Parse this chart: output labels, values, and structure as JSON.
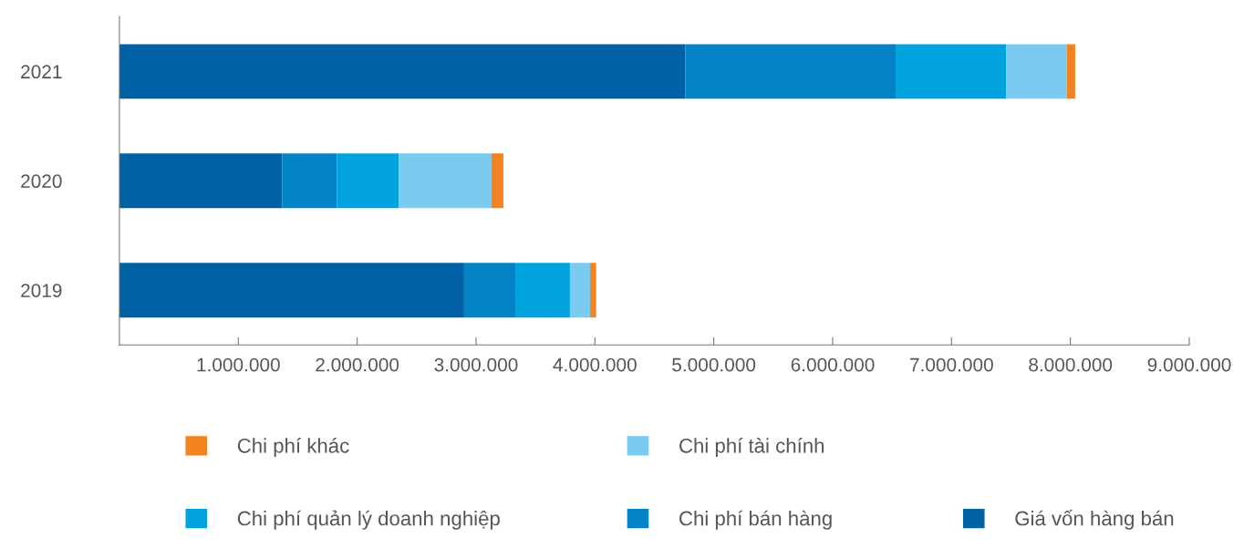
{
  "chart_data": {
    "type": "bar",
    "orientation": "horizontal",
    "stacked": true,
    "categories": [
      "2021",
      "2020",
      "2019"
    ],
    "series": [
      {
        "name": "Giá vốn hàng bán",
        "color": "#0062a5",
        "values": [
          4760000,
          1370000,
          2900000
        ]
      },
      {
        "name": "Chi phí bán hàng",
        "color": "#0383c5",
        "values": [
          1770000,
          460000,
          430000
        ]
      },
      {
        "name": "Chi phí quản lý doanh nghiệp",
        "color": "#00a3de",
        "values": [
          930000,
          520000,
          460000
        ]
      },
      {
        "name": "Chi phí tài chính",
        "color": "#7acbef",
        "values": [
          510000,
          780000,
          170000
        ]
      },
      {
        "name": "Chi phí khác",
        "color": "#f58220",
        "values": [
          70000,
          100000,
          50000
        ]
      }
    ],
    "xlim": [
      0,
      9000000
    ],
    "xticks": [
      {
        "value": 1000000,
        "label": "1.000.000"
      },
      {
        "value": 2000000,
        "label": "2.000.000"
      },
      {
        "value": 3000000,
        "label": "3.000.000"
      },
      {
        "value": 4000000,
        "label": "4.000.000"
      },
      {
        "value": 5000000,
        "label": "5.000.000"
      },
      {
        "value": 6000000,
        "label": "6.000.000"
      },
      {
        "value": 7000000,
        "label": "7.000.000"
      },
      {
        "value": 8000000,
        "label": "8.000.000"
      },
      {
        "value": 9000000,
        "label": "9.000.000"
      }
    ],
    "grid": false,
    "legend": "bottom"
  }
}
